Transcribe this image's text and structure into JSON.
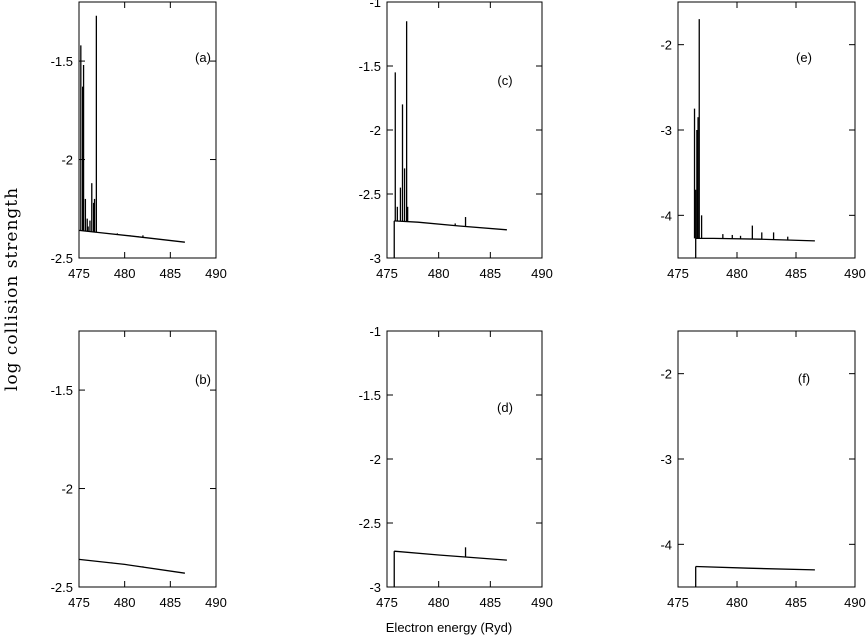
{
  "figure": {
    "ylabel": "log collision strength",
    "xlabel": "Electron energy (Ryd)"
  },
  "chart_data": [
    {
      "type": "line",
      "panel": "(a)",
      "xlim": [
        475,
        490
      ],
      "ylim": [
        -2.5,
        -1.2
      ],
      "xticks": [
        475,
        480,
        485,
        490
      ],
      "yticks": [
        -2.5,
        -2,
        -1.5
      ],
      "tick_labels_y": [
        "-2.5",
        "-2",
        "-1.5"
      ],
      "tick_labels_x": [
        "475",
        "480",
        "485",
        "490"
      ],
      "baseline": {
        "x": [
          475.0,
          477.0,
          481.0,
          486.6
        ],
        "y": [
          -2.36,
          -2.37,
          -2.39,
          -2.42
        ]
      },
      "spikes": [
        {
          "x": 475.2,
          "y": -1.42
        },
        {
          "x": 475.4,
          "y": -1.63
        },
        {
          "x": 475.5,
          "y": -1.52
        },
        {
          "x": 475.7,
          "y": -2.2
        },
        {
          "x": 475.9,
          "y": -2.3
        },
        {
          "x": 476.0,
          "y": -2.34
        },
        {
          "x": 476.2,
          "y": -2.31
        },
        {
          "x": 476.4,
          "y": -2.12
        },
        {
          "x": 476.6,
          "y": -2.22
        },
        {
          "x": 476.7,
          "y": -2.2
        },
        {
          "x": 476.9,
          "y": -1.27
        },
        {
          "x": 479.2,
          "y": -2.375
        },
        {
          "x": 480.6,
          "y": -2.385
        },
        {
          "x": 481.5,
          "y": -2.39
        },
        {
          "x": 482.0,
          "y": -2.385
        },
        {
          "x": 483.2,
          "y": -2.4
        }
      ]
    },
    {
      "type": "line",
      "panel": "(b)",
      "xlim": [
        475,
        490
      ],
      "ylim": [
        -2.5,
        -1.2
      ],
      "xticks": [
        475,
        480,
        485,
        490
      ],
      "yticks": [
        -2.5,
        -2,
        -1.5
      ],
      "tick_labels_y": [
        "-2.5",
        "-2",
        "-1.5"
      ],
      "tick_labels_x": [
        "475",
        "480",
        "485",
        "490"
      ],
      "baseline": {
        "x": [
          475.0,
          480.0,
          486.6
        ],
        "y": [
          -2.36,
          -2.385,
          -2.43
        ]
      },
      "spikes": [
        {
          "x": 478.6,
          "y": -2.375
        },
        {
          "x": 482.0,
          "y": -2.395
        }
      ]
    },
    {
      "type": "line",
      "panel": "(c)",
      "xlim": [
        475,
        490
      ],
      "ylim": [
        -3,
        -1
      ],
      "xticks": [
        475,
        480,
        485,
        490
      ],
      "yticks": [
        -3,
        -2.5,
        -2,
        -1.5,
        -1
      ],
      "tick_labels_y": [
        "-3",
        "-2.5",
        "-2",
        "-1.5",
        "-1"
      ],
      "tick_labels_x": [
        "475",
        "480",
        "485",
        "490"
      ],
      "baseline": {
        "x": [
          475.7,
          478.0,
          482.0,
          486.6
        ],
        "y": [
          -2.71,
          -2.72,
          -2.75,
          -2.78
        ]
      },
      "spikes": [
        {
          "x": 475.8,
          "y": -1.55
        },
        {
          "x": 476.0,
          "y": -2.6
        },
        {
          "x": 476.3,
          "y": -2.45
        },
        {
          "x": 476.5,
          "y": -1.8
        },
        {
          "x": 476.7,
          "y": -2.3
        },
        {
          "x": 476.9,
          "y": -1.15
        },
        {
          "x": 477.0,
          "y": -2.6
        },
        {
          "x": 481.6,
          "y": -2.73
        },
        {
          "x": 482.6,
          "y": -2.68
        }
      ]
    },
    {
      "type": "line",
      "panel": "(d)",
      "xlim": [
        475,
        490
      ],
      "ylim": [
        -3,
        -1
      ],
      "xticks": [
        475,
        480,
        485,
        490
      ],
      "yticks": [
        -3,
        -2.5,
        -2,
        -1.5,
        -1
      ],
      "tick_labels_y": [
        "-3",
        "-2.5",
        "-2",
        "-1.5",
        "-1"
      ],
      "tick_labels_x": [
        "475",
        "480",
        "485",
        "490"
      ],
      "baseline": {
        "x": [
          475.7,
          480.0,
          486.6
        ],
        "y": [
          -2.72,
          -2.75,
          -2.79
        ]
      },
      "spikes": [
        {
          "x": 482.6,
          "y": -2.69
        }
      ]
    },
    {
      "type": "line",
      "panel": "(e)",
      "xlim": [
        475,
        490
      ],
      "ylim": [
        -4.5,
        -1.5
      ],
      "xticks": [
        475,
        480,
        485,
        490
      ],
      "yticks": [
        -4,
        -3,
        -2
      ],
      "tick_labels_y": [
        "-4",
        "-3",
        "-2"
      ],
      "tick_labels_x": [
        "475",
        "480",
        "485",
        "490"
      ],
      "baseline": {
        "x": [
          476.5,
          478.0,
          482.0,
          486.6
        ],
        "y": [
          -4.27,
          -4.27,
          -4.28,
          -4.3
        ]
      },
      "spikes": [
        {
          "x": 476.4,
          "y": -2.75
        },
        {
          "x": 476.5,
          "y": -3.7
        },
        {
          "x": 476.6,
          "y": -3.0
        },
        {
          "x": 476.7,
          "y": -2.85
        },
        {
          "x": 476.8,
          "y": -1.7
        },
        {
          "x": 477.0,
          "y": -4.0
        },
        {
          "x": 478.8,
          "y": -4.22
        },
        {
          "x": 479.6,
          "y": -4.23
        },
        {
          "x": 480.3,
          "y": -4.24
        },
        {
          "x": 481.3,
          "y": -4.12
        },
        {
          "x": 482.1,
          "y": -4.2
        },
        {
          "x": 483.1,
          "y": -4.2
        },
        {
          "x": 484.3,
          "y": -4.25
        }
      ]
    },
    {
      "type": "line",
      "panel": "(f)",
      "xlim": [
        475,
        490
      ],
      "ylim": [
        -4.5,
        -1.5
      ],
      "xticks": [
        475,
        480,
        485,
        490
      ],
      "yticks": [
        -4,
        -3,
        -2
      ],
      "tick_labels_y": [
        "-4",
        "-3",
        "-2"
      ],
      "tick_labels_x": [
        "475",
        "480",
        "485",
        "490"
      ],
      "baseline": {
        "x": [
          476.5,
          481.0,
          486.6
        ],
        "y": [
          -4.26,
          -4.28,
          -4.3
        ]
      },
      "spikes": []
    }
  ]
}
